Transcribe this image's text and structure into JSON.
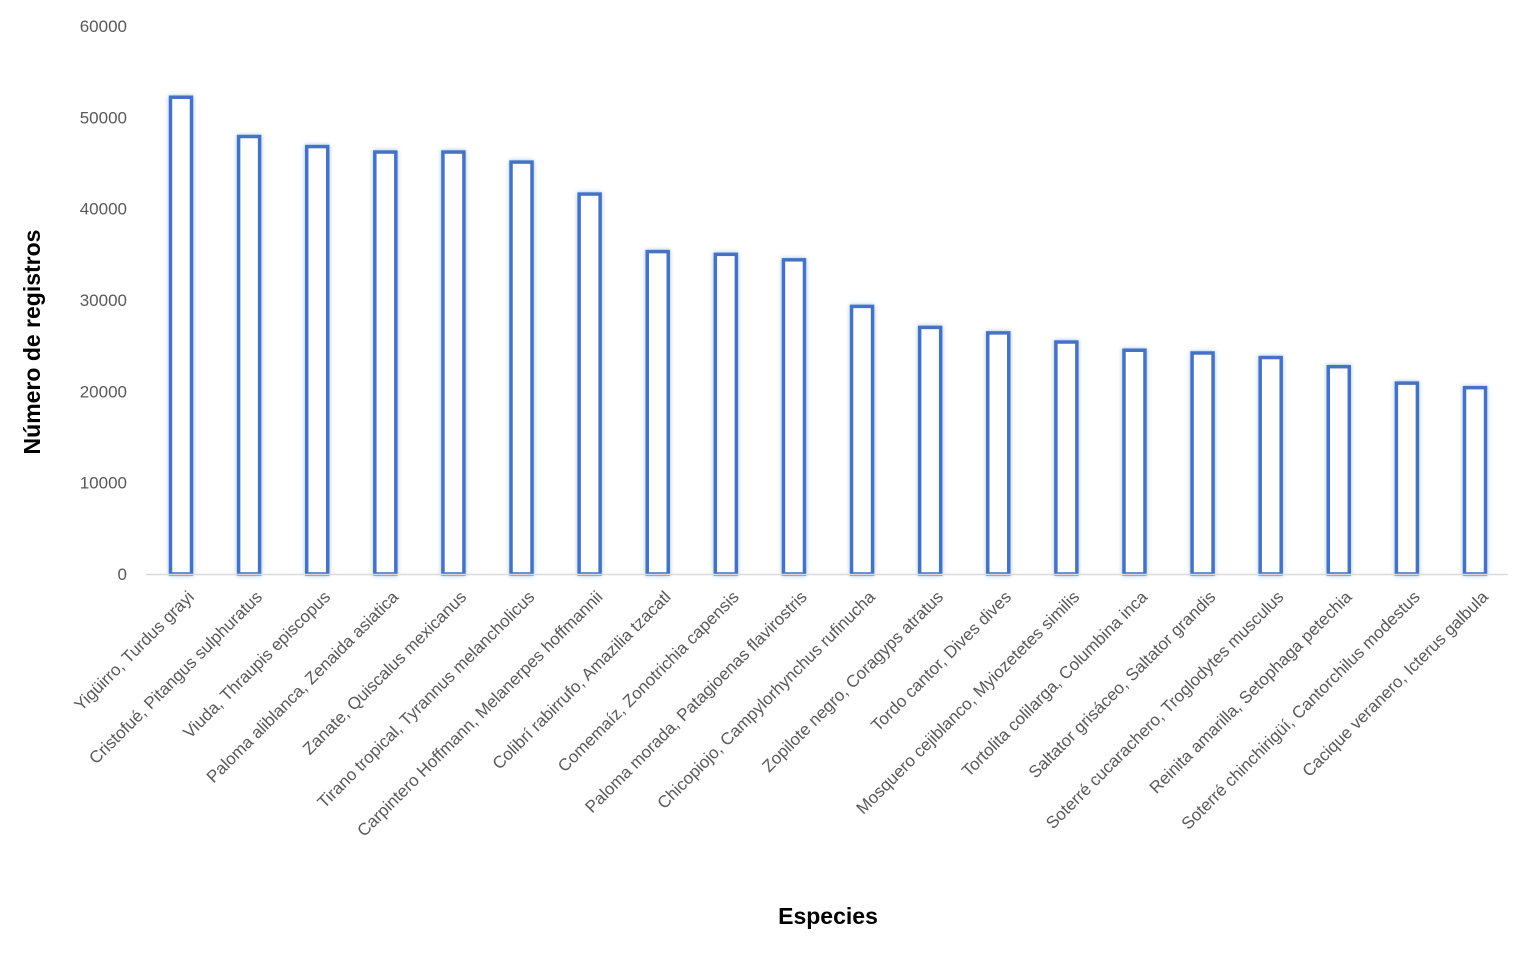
{
  "chart_data": {
    "type": "bar",
    "title": "",
    "xlabel": "Especies",
    "ylabel": "Número de registros",
    "ylim": [
      0,
      60000
    ],
    "yticks": [
      0,
      10000,
      20000,
      30000,
      40000,
      50000,
      60000
    ],
    "ytick_labels": [
      "0",
      "10000",
      "20000",
      "30000",
      "40000",
      "50000",
      "60000"
    ],
    "grid": false,
    "legend": "none",
    "bar_style": "outlined",
    "colors": {
      "bar_outline": "#4472c4",
      "bar_glow": "#9dc3e6",
      "bar_fill": "#ffffff",
      "axis_line": "#d9d9d9",
      "tick_text": "#595959",
      "title_text": "#000000"
    },
    "categories": [
      "Yigüirro, Turdus grayi",
      "Cristofué, Pitangus sulphuratus",
      "Viuda, Thraupis episcopus",
      "Paloma aliblanca, Zenaida asiatica",
      "Zanate, Quiscalus mexicanus",
      "Tirano tropical, Tyrannus melancholicus",
      "Carpintero Hoffmann, Melanerpes hoffmannii",
      "Colibrí rabirrufo, Amazilia tzacatl",
      "Comemaíz, Zonotrichia capensis",
      "Paloma morada, Patagioenas flavirostris",
      "Chicopiojo, Campylorhynchus rufinucha",
      "Zopilote negro, Coragyps atratus",
      "Tordo cantor, Dives dives",
      "Mosquero cejiblanco, Myiozetetes similis",
      "Tortolita colilarga, Columbina inca",
      "Saltator grisáceo, Saltator grandis",
      "Soterré cucarachero, Troglodytes musculus",
      "Reinita amarilla, Setophaga petechia",
      "Soterré chinchirigüí, Cantorchilus modestus",
      "Cacique veranero, Icterus galbula"
    ],
    "values": [
      52200,
      47900,
      46800,
      46200,
      46200,
      45100,
      41600,
      35300,
      35000,
      34400,
      29300,
      27000,
      26400,
      25400,
      24500,
      24200,
      23700,
      22700,
      20900,
      20400
    ]
  }
}
